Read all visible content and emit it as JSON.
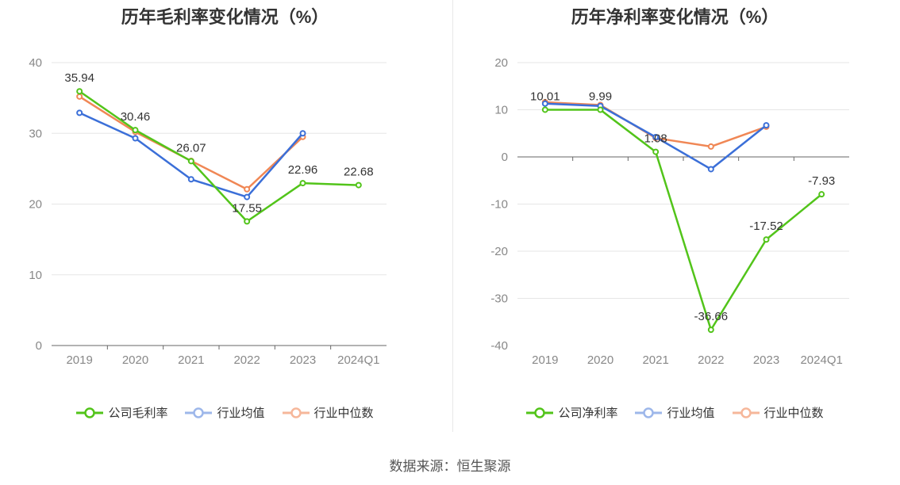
{
  "footer": {
    "source": "数据来源：恒生聚源"
  },
  "chart_data": [
    {
      "id": "gross",
      "type": "line",
      "title": "历年毛利率变化情况（%）",
      "categories": [
        "2019",
        "2020",
        "2021",
        "2022",
        "2023",
        "2024Q1"
      ],
      "ylim": [
        0,
        40
      ],
      "yticks": [
        0,
        10,
        20,
        30,
        40
      ],
      "grid": true,
      "legend_position": "bottom-center",
      "series": [
        {
          "name": "公司毛利率",
          "color": "#52c41a",
          "values": [
            35.94,
            30.46,
            26.07,
            17.55,
            22.96,
            22.68
          ],
          "labels": [
            "35.94",
            "30.46",
            "26.07",
            "17.55",
            "22.96",
            "22.68"
          ]
        },
        {
          "name": "行业均值",
          "color": "#3b6fd8",
          "values": [
            32.9,
            29.3,
            23.5,
            21.0,
            30.0,
            null
          ]
        },
        {
          "name": "行业中位数",
          "color": "#f08755",
          "values": [
            35.2,
            30.2,
            26.1,
            22.1,
            29.5,
            null
          ]
        }
      ]
    },
    {
      "id": "net",
      "type": "line",
      "title": "历年净利率变化情况（%）",
      "categories": [
        "2019",
        "2020",
        "2021",
        "2022",
        "2023",
        "2024Q1"
      ],
      "ylim": [
        -40,
        20
      ],
      "yticks": [
        -40,
        -30,
        -20,
        -10,
        0,
        10,
        20
      ],
      "grid": true,
      "legend_position": "bottom-center",
      "series": [
        {
          "name": "公司净利率",
          "color": "#52c41a",
          "values": [
            10.01,
            9.99,
            1.08,
            -36.66,
            -17.52,
            -7.93
          ],
          "labels": [
            "10.01",
            "9.99",
            "1.08",
            "-36.66",
            "-17.52",
            "-7.93"
          ]
        },
        {
          "name": "行业均值",
          "color": "#3b6fd8",
          "values": [
            11.3,
            10.8,
            4.2,
            -2.6,
            6.7,
            null
          ]
        },
        {
          "name": "行业中位数",
          "color": "#f08755",
          "values": [
            11.6,
            11.0,
            4.0,
            2.2,
            6.4,
            null
          ]
        }
      ]
    }
  ]
}
